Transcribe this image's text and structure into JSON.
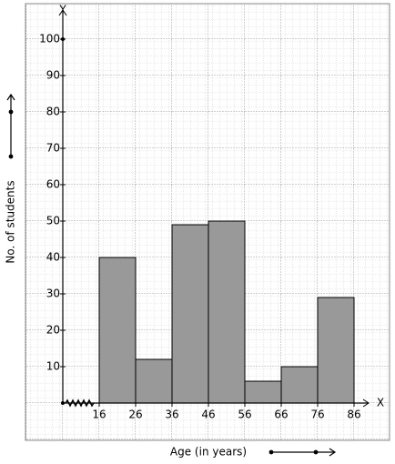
{
  "chart_data": {
    "type": "histogram",
    "bins": [
      16,
      26,
      36,
      46,
      56,
      66,
      76,
      86
    ],
    "values": [
      40,
      12,
      49,
      50,
      6,
      10,
      29
    ],
    "color": "#999999",
    "xlim": [
      6,
      90
    ],
    "ylim": [
      0,
      108
    ],
    "xticks": [
      16,
      26,
      36,
      46,
      56,
      66,
      76,
      86
    ],
    "yticks": [
      10,
      20,
      30,
      40,
      50,
      60,
      70,
      80,
      90,
      100
    ],
    "x_label": "Age (in years)",
    "y_label": "No. of students",
    "x_axis_name": "X",
    "y_axis_name": "Y"
  }
}
